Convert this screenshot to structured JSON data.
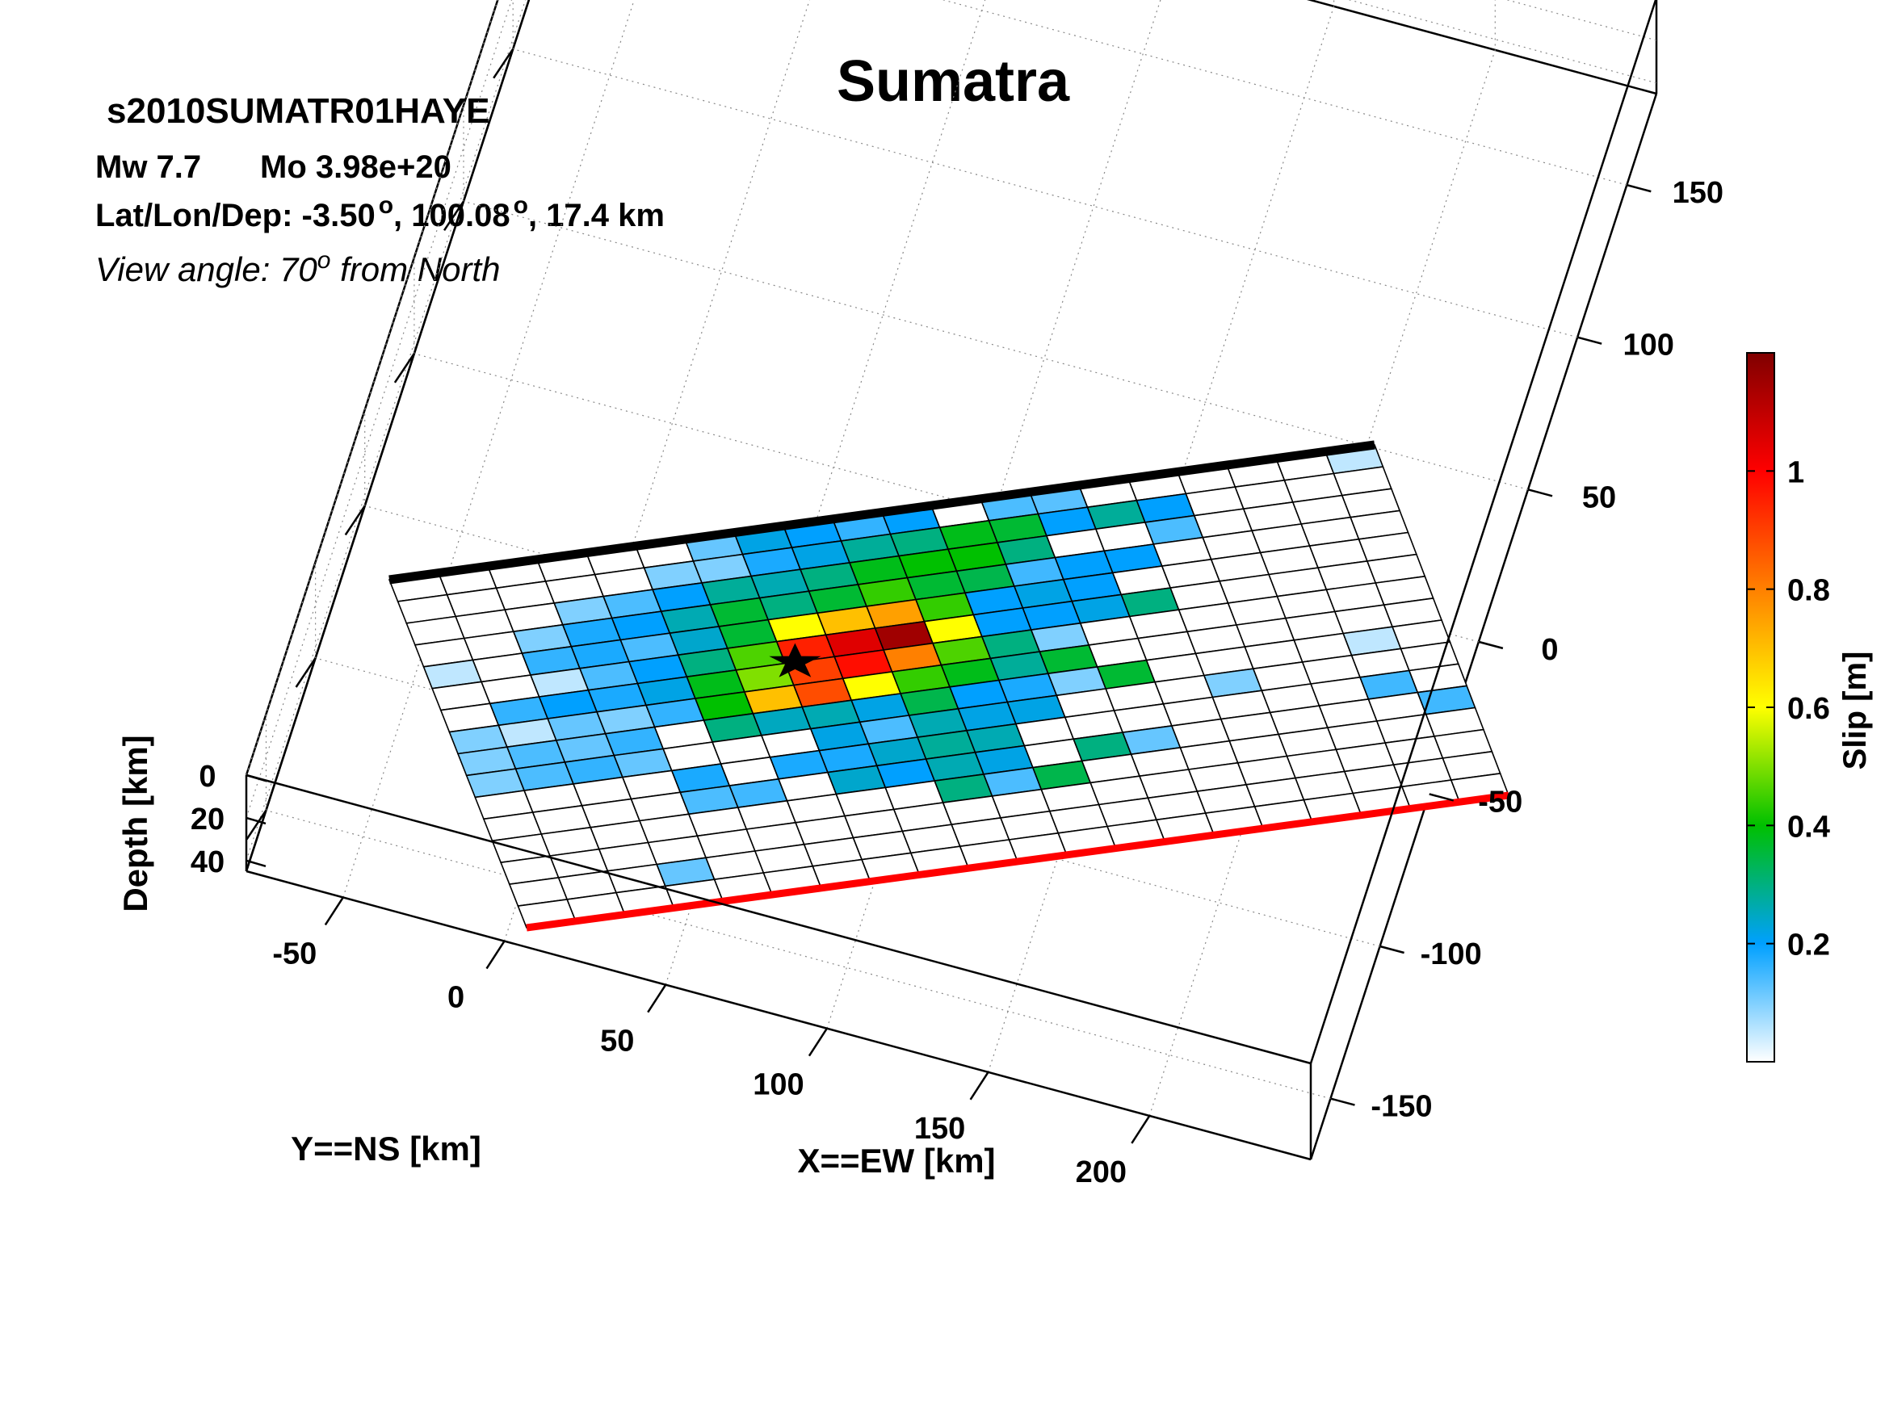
{
  "header": {
    "title": "Sumatra",
    "event_id": "s2010SUMATR01HAYE",
    "mw_label": "Mw 7.7",
    "mo_label": "Mo 3.98e+20",
    "latlon_prefix": "Lat/Lon/Dep: -3.50",
    "lon_text": ", 100.08",
    "dep_text": ", 17.4 km",
    "view_prefix": "View angle:  70",
    "view_suffix": " from North",
    "degree_mark": "o"
  },
  "chart_data": {
    "type": "heatmap",
    "title": "Sumatra",
    "x_axis": {
      "label": "X==EW [km]",
      "ticks": [
        -50,
        0,
        50,
        100,
        150,
        200
      ],
      "range": [
        -80,
        250
      ]
    },
    "y_axis": {
      "label": "Y==NS [km]",
      "ticks": [
        -150,
        -100,
        -50,
        0,
        50,
        100,
        150
      ],
      "range": [
        -170,
        180
      ]
    },
    "z_axis": {
      "label": "Depth [km]",
      "ticks": [
        0,
        20,
        40
      ],
      "range": [
        0,
        45
      ]
    },
    "grid": true,
    "colorbar": {
      "label": "Slip [m]",
      "ticks": [
        0.2,
        0.4,
        0.6,
        0.8,
        1
      ],
      "tick_labels": [
        "0.2",
        "0.4",
        "0.6",
        "0.8",
        "1"
      ],
      "range": [
        0,
        1.2
      ],
      "colormap": [
        "#ffffff",
        "#00a0ff",
        "#00c000",
        "#ffff00",
        "#ff8000",
        "#ff0000",
        "#800000"
      ]
    },
    "fault_rows": 16,
    "fault_cols": 20,
    "slip": [
      [
        0,
        0,
        0,
        0,
        0,
        0,
        0.12,
        0.22,
        0.2,
        0.16,
        0.2,
        0,
        0.14,
        0.13,
        0,
        0,
        0,
        0,
        0,
        0.05
      ],
      [
        0,
        0,
        0,
        0,
        0,
        0.1,
        0.1,
        0.18,
        0.22,
        0.28,
        0.3,
        0.38,
        0.36,
        0.2,
        0.28,
        0.2,
        0,
        0,
        0,
        0
      ],
      [
        0,
        0,
        0,
        0.1,
        0.14,
        0.2,
        0.28,
        0.26,
        0.3,
        0.38,
        0.4,
        0.4,
        0.3,
        0,
        0,
        0.14,
        0,
        0,
        0,
        0
      ],
      [
        0,
        0,
        0.1,
        0.18,
        0.2,
        0.26,
        0.36,
        0.3,
        0.36,
        0.44,
        0.36,
        0.34,
        0.15,
        0.2,
        0.2,
        0,
        0,
        0,
        0,
        0
      ],
      [
        0.05,
        0,
        0.16,
        0.18,
        0.14,
        0.24,
        0.36,
        0.6,
        0.7,
        0.75,
        0.44,
        0.2,
        0.22,
        0.2,
        0,
        0,
        0,
        0,
        0,
        0
      ],
      [
        0,
        0,
        0.05,
        0.14,
        0.2,
        0.3,
        0.46,
        0.95,
        1.05,
        1.15,
        0.6,
        0.2,
        0.2,
        0.22,
        0.3,
        0,
        0,
        0,
        0,
        0
      ],
      [
        0,
        0.16,
        0.2,
        0.18,
        0.22,
        0.38,
        0.5,
        0.9,
        0.98,
        0.8,
        0.46,
        0.3,
        0.1,
        0,
        0,
        0,
        0,
        0,
        0,
        0
      ],
      [
        0.1,
        0.05,
        0.12,
        0.1,
        0.16,
        0.4,
        0.7,
        0.88,
        0.6,
        0.44,
        0.38,
        0.28,
        0.36,
        0,
        0,
        0,
        0,
        0,
        0,
        0
      ],
      [
        0.1,
        0.14,
        0.12,
        0.16,
        0,
        0.3,
        0.25,
        0.26,
        0.22,
        0.34,
        0.2,
        0.18,
        0.1,
        0.36,
        0,
        0,
        0,
        0,
        0.05,
        0
      ],
      [
        0.1,
        0.14,
        0.16,
        0.12,
        0,
        0,
        0,
        0.22,
        0.14,
        0.26,
        0.22,
        0.22,
        0,
        0,
        0,
        0.1,
        0,
        0,
        0,
        0
      ],
      [
        0,
        0,
        0,
        0,
        0.18,
        0,
        0.18,
        0.18,
        0.24,
        0.28,
        0.26,
        0,
        0,
        0,
        0,
        0,
        0,
        0,
        0.15,
        0
      ],
      [
        0,
        0,
        0,
        0,
        0.14,
        0.15,
        0,
        0.24,
        0.2,
        0.26,
        0.22,
        0,
        0.3,
        0.12,
        0,
        0,
        0,
        0,
        0,
        0.15
      ],
      [
        0,
        0,
        0,
        0,
        0,
        0,
        0,
        0,
        0,
        0.3,
        0.14,
        0.34,
        0,
        0,
        0,
        0,
        0,
        0,
        0,
        0
      ],
      [
        0,
        0,
        0,
        0,
        0,
        0,
        0,
        0,
        0,
        0,
        0,
        0,
        0,
        0,
        0,
        0,
        0,
        0,
        0,
        0
      ],
      [
        0,
        0,
        0,
        0.12,
        0,
        0,
        0,
        0,
        0,
        0,
        0,
        0,
        0,
        0,
        0,
        0,
        0,
        0,
        0,
        0
      ],
      [
        0,
        0,
        0,
        0,
        0,
        0,
        0,
        0,
        0,
        0,
        0,
        0,
        0,
        0,
        0,
        0,
        0,
        0,
        0,
        0
      ]
    ],
    "hypocenter": {
      "x_km": 0,
      "y_km": 0,
      "depth_km": 17.4
    },
    "annotations": [
      "rupture top edge (black)",
      "rupture bottom edge (red)",
      "hypocenter (star)"
    ]
  }
}
